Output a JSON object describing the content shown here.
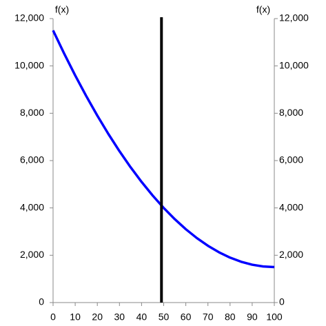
{
  "chart_data": {
    "type": "line",
    "y_label": "f(x)",
    "y2_label": "f(x)",
    "x": [
      0,
      5,
      10,
      15,
      20,
      25,
      30,
      35,
      40,
      45,
      50,
      55,
      60,
      65,
      70,
      75,
      80,
      85,
      90,
      95,
      100
    ],
    "series": [
      {
        "color": "#0000ff",
        "values": [
          11500,
          10525,
          9600,
          8725,
          7900,
          7125,
          6400,
          5725,
          5100,
          4525,
          4000,
          3525,
          3100,
          2725,
          2400,
          2125,
          1900,
          1725,
          1600,
          1525,
          1500
        ]
      }
    ],
    "vline": {
      "x": 49,
      "color": "#000000"
    },
    "xlim": [
      0,
      100
    ],
    "xticks": [
      0,
      10,
      20,
      30,
      40,
      50,
      60,
      70,
      80,
      90,
      100
    ],
    "ylim": [
      0,
      12000
    ],
    "yticks": [
      0,
      {
        "value": 2000,
        "label": "2,000"
      },
      {
        "value": 4000,
        "label": "4,000"
      },
      {
        "value": 6000,
        "label": "6,000"
      },
      {
        "value": 8000,
        "label": "8,000"
      },
      {
        "value": 10000,
        "label": "10,000"
      },
      {
        "value": 12000,
        "label": "12,000"
      }
    ],
    "y2lim": [
      0,
      12000
    ],
    "y2ticks": [
      0,
      {
        "value": 2000,
        "label": "2,000"
      },
      {
        "value": 4000,
        "label": "4,000"
      },
      {
        "value": 6000,
        "label": "6,000"
      },
      {
        "value": 8000,
        "label": "8,000"
      },
      {
        "value": 10000,
        "label": "10,000"
      },
      {
        "value": 12000,
        "label": "12,000"
      }
    ],
    "grid": false
  }
}
